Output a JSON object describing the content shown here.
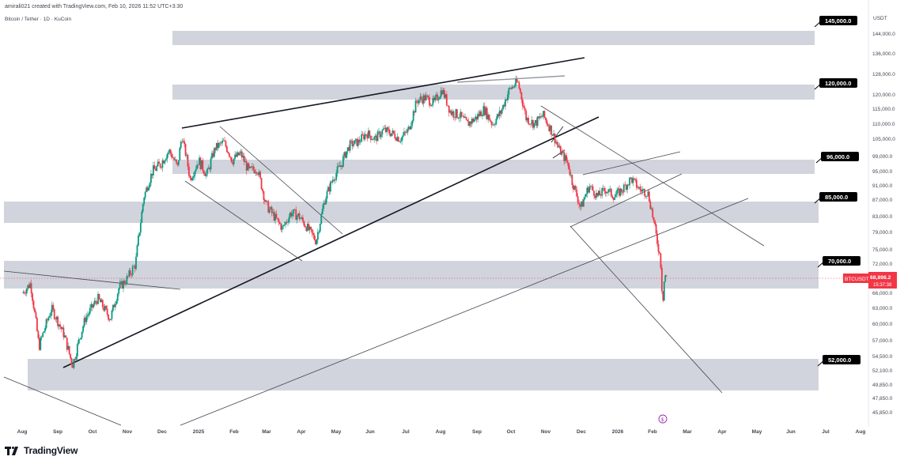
{
  "header": {
    "credit": "amirali021 created with TradingView.com, Feb 10, 2026 11:52 UTC+3:30",
    "symbol_line": "Bitcoin / Tether · 1D · KuCoin"
  },
  "brand": {
    "name": "TradingView",
    "logo_icon": "tradingview-logo-icon"
  },
  "price_axis": {
    "currency": "USDT",
    "ticks": [
      "144,000.0",
      "136,000.0",
      "128,000.0",
      "120,000.0",
      "115,000.0",
      "110,000.0",
      "105,000.0",
      "99,000.0",
      "95,000.0",
      "91,000.0",
      "87,000.0",
      "83,000.0",
      "79,000.0",
      "75,000.0",
      "72,000.0",
      "66,000.0",
      "63,000.0",
      "60,000.0",
      "57,000.0",
      "54,500.0",
      "52,100.0",
      "49,850.0",
      "47,850.0",
      "45,850.0"
    ],
    "last_price_badge": {
      "label": "BTCUSDT",
      "price": "68,898.2",
      "countdown": "15:37:38"
    }
  },
  "colors": {
    "up": "#089981",
    "down": "#f23645",
    "zone": "#d1d4dc",
    "label_bg": "#000000",
    "badge": "#f23645"
  },
  "chart_data": {
    "type": "candlestick",
    "symbol": "BTCUSDT",
    "interval": "1D",
    "exchange": "KuCoin",
    "x_axis_labels": [
      "Aug",
      "Sep",
      "Oct",
      "Nov",
      "Dec",
      "2025",
      "Feb",
      "Mar",
      "Apr",
      "May",
      "Jun",
      "Jul",
      "Aug",
      "Sep",
      "Oct",
      "Nov",
      "Dec",
      "2026",
      "Feb",
      "Mar",
      "Apr",
      "May",
      "Jun",
      "Jul",
      "Aug"
    ],
    "price_path": [
      [
        2024.58,
        66000
      ],
      [
        2024.6,
        68000
      ],
      [
        2024.62,
        56000
      ],
      [
        2024.65,
        63000
      ],
      [
        2024.68,
        58000
      ],
      [
        2024.7,
        53000
      ],
      [
        2024.73,
        61000
      ],
      [
        2024.76,
        65000
      ],
      [
        2024.79,
        61000
      ],
      [
        2024.81,
        67000
      ],
      [
        2024.83,
        69000
      ],
      [
        2024.85,
        72000
      ],
      [
        2024.87,
        88000
      ],
      [
        2024.89,
        95000
      ],
      [
        2024.91,
        97000
      ],
      [
        2024.93,
        101000
      ],
      [
        2024.95,
        96000
      ],
      [
        2024.96,
        106000
      ],
      [
        2024.98,
        93000
      ],
      [
        2025.0,
        98000
      ],
      [
        2025.02,
        94000
      ],
      [
        2025.04,
        102000
      ],
      [
        2025.06,
        104000
      ],
      [
        2025.08,
        98000
      ],
      [
        2025.1,
        100000
      ],
      [
        2025.12,
        95000
      ],
      [
        2025.14,
        96000
      ],
      [
        2025.16,
        86000
      ],
      [
        2025.18,
        83000
      ],
      [
        2025.2,
        80000
      ],
      [
        2025.22,
        84000
      ],
      [
        2025.24,
        83000
      ],
      [
        2025.26,
        80000
      ],
      [
        2025.28,
        77000
      ],
      [
        2025.29,
        82000
      ],
      [
        2025.3,
        87000
      ],
      [
        2025.32,
        93000
      ],
      [
        2025.34,
        97000
      ],
      [
        2025.36,
        103000
      ],
      [
        2025.38,
        104000
      ],
      [
        2025.4,
        107000
      ],
      [
        2025.42,
        105000
      ],
      [
        2025.44,
        108000
      ],
      [
        2025.46,
        107000
      ],
      [
        2025.48,
        105000
      ],
      [
        2025.5,
        108000
      ],
      [
        2025.52,
        118000
      ],
      [
        2025.54,
        119000
      ],
      [
        2025.56,
        117000
      ],
      [
        2025.58,
        122000
      ],
      [
        2025.6,
        114000
      ],
      [
        2025.62,
        113000
      ],
      [
        2025.64,
        110000
      ],
      [
        2025.66,
        112000
      ],
      [
        2025.68,
        115000
      ],
      [
        2025.7,
        110000
      ],
      [
        2025.72,
        114000
      ],
      [
        2025.74,
        122000
      ],
      [
        2025.76,
        125000
      ],
      [
        2025.78,
        112000
      ],
      [
        2025.8,
        110000
      ],
      [
        2025.82,
        113000
      ],
      [
        2025.84,
        108000
      ],
      [
        2025.86,
        101000
      ],
      [
        2025.88,
        97000
      ],
      [
        2025.89,
        92000
      ],
      [
        2025.91,
        85000
      ],
      [
        2025.93,
        91000
      ],
      [
        2025.95,
        88000
      ],
      [
        2025.97,
        90000
      ],
      [
        2025.99,
        88000
      ],
      [
        2026.01,
        90000
      ],
      [
        2026.03,
        93000
      ],
      [
        2026.05,
        90000
      ],
      [
        2026.07,
        89000
      ],
      [
        2026.08,
        84000
      ],
      [
        2026.09,
        78000
      ],
      [
        2026.1,
        73000
      ],
      [
        2026.105,
        64000
      ],
      [
        2026.11,
        70000
      ],
      [
        2026.115,
        68898
      ]
    ],
    "horizontal_zones": [
      {
        "label": "145,000.0",
        "price": 145000
      },
      {
        "label": "120,000.0",
        "price": 120000
      },
      {
        "label": "96,000.0",
        "price": 96000
      },
      {
        "label": "85,000.0",
        "price": 85000
      },
      {
        "label": "70,000.0",
        "price": 70000
      },
      {
        "label": "52,000.0",
        "price": 52000
      }
    ],
    "last_price": 68898.2
  }
}
